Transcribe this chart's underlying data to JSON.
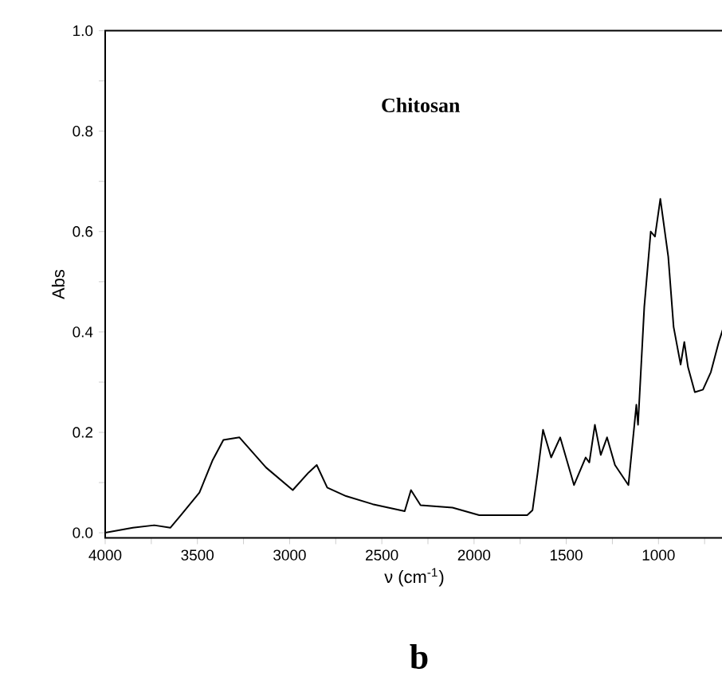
{
  "chart_data": {
    "type": "line",
    "title": "Chitosan",
    "xlabel": "ν (cm$^{-1}$)",
    "ylabel": "Abs",
    "annotations": [
      "b"
    ],
    "color": "#000000",
    "marker": "none",
    "line_style": "solid",
    "grid": false,
    "xlim": [
      4000,
      647
    ],
    "ylim": [
      -0.01,
      1.0
    ],
    "xticks": [
      4000,
      {
        "value": 3750,
        "label": null
      },
      3500,
      {
        "value": 3250,
        "label": null
      },
      3000,
      {
        "value": 2750,
        "label": null
      },
      2500,
      {
        "value": 2250,
        "label": null
      },
      2000,
      {
        "value": 1750,
        "label": null
      },
      1500,
      {
        "value": 1250,
        "label": null
      },
      1000,
      {
        "value": 750,
        "label": null
      }
    ],
    "yticks": [
      {
        "value": 0,
        "label": "0.0"
      },
      {
        "value": 0.1,
        "label": null
      },
      {
        "value": 0.2,
        "label": "0.2"
      },
      {
        "value": 0.3,
        "label": null
      },
      {
        "value": 0.4,
        "label": "0.4"
      },
      {
        "value": 0.5,
        "label": null
      },
      {
        "value": 0.6,
        "label": "0.6"
      },
      {
        "value": 0.7,
        "label": null
      },
      {
        "value": 0.8,
        "label": "0.8"
      },
      {
        "value": 0.9,
        "label": null
      },
      {
        "value": 1.0,
        "label": "1.0"
      }
    ],
    "x": [
      4000,
      3850,
      3734,
      3647,
      3590,
      3489,
      3417,
      3359,
      3272,
      3128,
      2983,
      2897,
      2853,
      2796,
      2694,
      2550,
      2376,
      2342,
      2290,
      2117,
      1972,
      1712,
      1683,
      1655,
      1626,
      1582,
      1533,
      1458,
      1395,
      1375,
      1345,
      1313,
      1279,
      1236,
      1163,
      1120,
      1111,
      1077,
      1042,
      1019,
      990,
      947,
      918,
      880,
      860,
      840,
      803,
      759,
      716,
      673,
      647
    ],
    "values": [
      0.0,
      0.01,
      0.015,
      0.01,
      0.035,
      0.08,
      0.145,
      0.185,
      0.19,
      0.13,
      0.085,
      0.12,
      0.135,
      0.09,
      0.073,
      0.057,
      0.043,
      0.085,
      0.055,
      0.05,
      0.035,
      0.035,
      0.045,
      0.12,
      0.205,
      0.15,
      0.19,
      0.095,
      0.15,
      0.14,
      0.215,
      0.155,
      0.19,
      0.135,
      0.095,
      0.255,
      0.215,
      0.45,
      0.6,
      0.59,
      0.665,
      0.55,
      0.41,
      0.335,
      0.38,
      0.33,
      0.28,
      0.285,
      0.32,
      0.38,
      0.41
    ]
  }
}
